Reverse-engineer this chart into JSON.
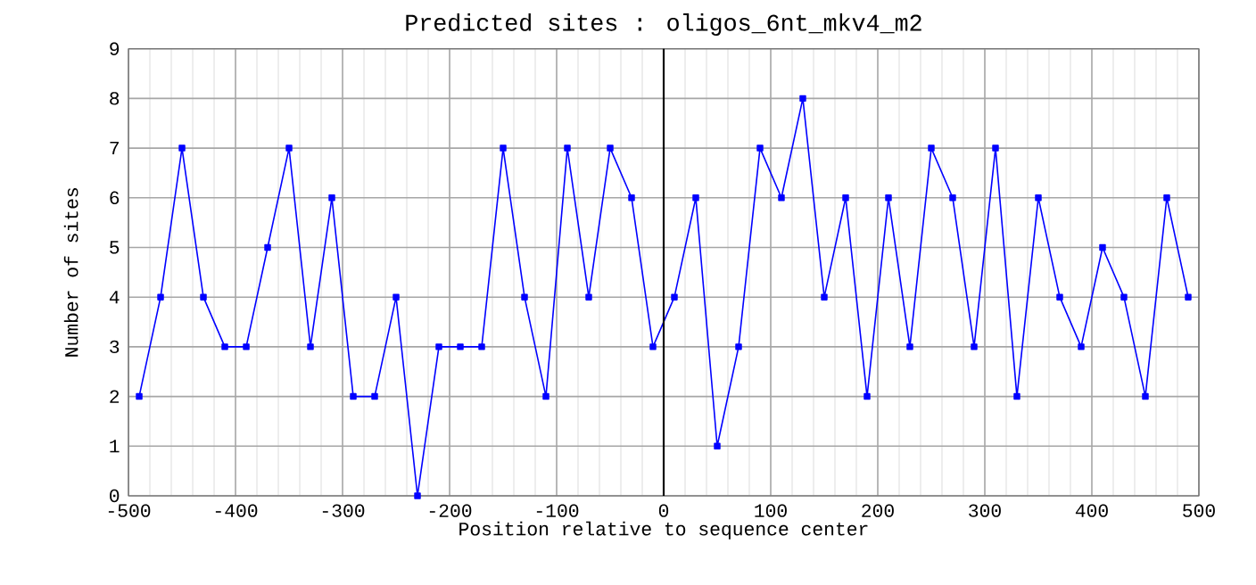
{
  "chart_data": {
    "type": "line",
    "title": "Predicted sites : oligos_6nt_mkv4_m2",
    "xlabel": "Position relative to sequence center",
    "ylabel": "Number of sites",
    "x": [
      -490,
      -470,
      -450,
      -430,
      -410,
      -390,
      -370,
      -350,
      -330,
      -310,
      -290,
      -270,
      -250,
      -230,
      -210,
      -190,
      -170,
      -150,
      -130,
      -110,
      -90,
      -70,
      -50,
      -30,
      -10,
      10,
      30,
      50,
      70,
      90,
      110,
      130,
      150,
      170,
      190,
      210,
      230,
      250,
      270,
      290,
      310,
      330,
      350,
      370,
      390,
      410,
      430,
      450,
      470,
      490
    ],
    "series": [
      {
        "color": "#0000ff",
        "values": [
          2,
          4,
          7,
          4,
          3,
          3,
          5,
          7,
          3,
          6,
          2,
          2,
          4,
          0,
          3,
          3,
          3,
          7,
          4,
          2,
          7,
          4,
          7,
          6,
          3,
          4,
          6,
          1,
          3,
          7,
          6,
          8,
          4,
          6,
          2,
          6,
          3,
          7,
          6,
          3,
          7,
          2,
          6,
          4,
          3,
          5,
          4,
          2,
          6,
          4
        ]
      }
    ],
    "xlim": [
      -500,
      500
    ],
    "ylim": [
      0,
      9
    ],
    "xticks": [
      -500,
      -400,
      -300,
      -200,
      -100,
      0,
      100,
      200,
      300,
      400,
      500
    ],
    "yticks": [
      0,
      1,
      2,
      3,
      4,
      5,
      6,
      7,
      8,
      9
    ],
    "ref_lines": [
      {
        "axis": "x",
        "value": 0,
        "color": "#000000"
      }
    ],
    "grid": true,
    "marker": "square",
    "line_style": "solid"
  }
}
